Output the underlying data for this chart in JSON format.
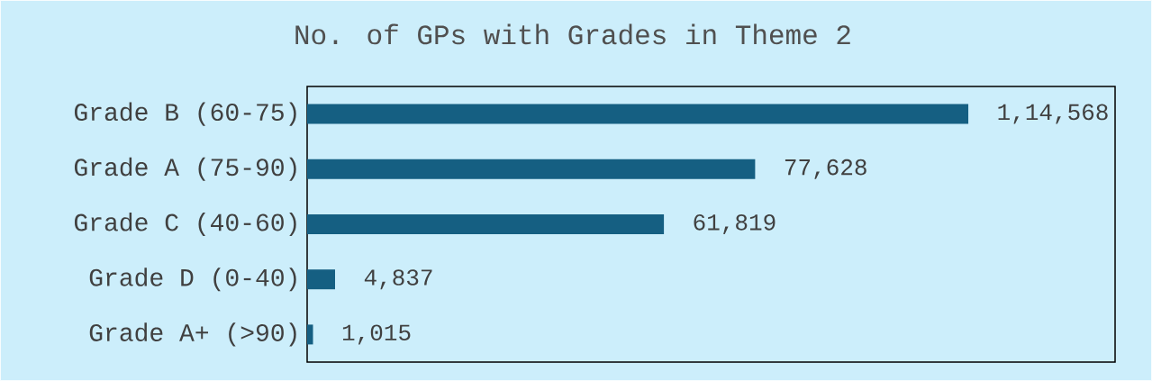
{
  "chart_data": {
    "type": "bar",
    "orientation": "horizontal",
    "title": "No. of GPs with Grades in Theme 2",
    "categories": [
      "Grade B (60-75)",
      "Grade A (75-90)",
      "Grade C (40-60)",
      "Grade D (0-40)",
      "Grade A+ (>90)"
    ],
    "values": [
      114568,
      77628,
      61819,
      4837,
      1015
    ],
    "value_labels": [
      "1,14,568",
      "77,628",
      "61,819",
      "4,837",
      "1,015"
    ],
    "color": "#155f82",
    "xlim": [
      0,
      140000
    ]
  }
}
